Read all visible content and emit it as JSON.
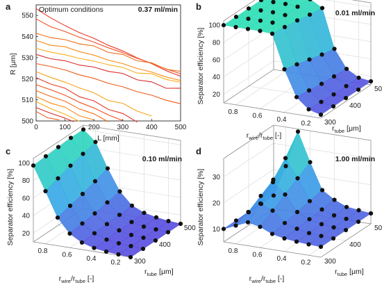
{
  "colors": {
    "accent_high": "#2ee6b0",
    "accent_low": "#5b4fe0",
    "trace_colors": [
      "#e8372a",
      "#f04e1e",
      "#f56a14",
      "#f98a12",
      "#fbae1a",
      "#d82a2a",
      "#ee5a1a",
      "#f7a21a"
    ]
  },
  "chart_data": [
    {
      "panel": "a",
      "type": "line",
      "title": "Optimum conditions",
      "flow_rate": "0.37 ml/min",
      "xlabel": "L [mm]",
      "ylabel": "R [μm]",
      "xlim": [
        0,
        500
      ],
      "ylim": [
        500,
        555
      ],
      "xticks": [
        "0",
        "100",
        "200",
        "300",
        "400",
        "500"
      ],
      "yticks": [
        "500",
        "510",
        "520",
        "530",
        "540",
        "550"
      ],
      "grid": false,
      "series": [
        {
          "x": [
            0,
            50,
            100,
            150,
            200,
            250,
            300,
            350,
            400,
            450,
            500
          ],
          "y": [
            553,
            549,
            545,
            542,
            539,
            536,
            533,
            530,
            527,
            524,
            521
          ]
        },
        {
          "x": [
            0,
            50,
            100,
            150,
            200,
            250,
            300,
            350,
            400,
            450,
            500
          ],
          "y": [
            548,
            545,
            542,
            540,
            537,
            535,
            532,
            530,
            527,
            525,
            522
          ]
        },
        {
          "x": [
            0,
            50,
            100,
            150,
            200,
            250,
            300,
            350,
            400,
            450,
            500
          ],
          "y": [
            541,
            540,
            538,
            537,
            535,
            533,
            531,
            529,
            527,
            525,
            523
          ]
        },
        {
          "x": [
            0,
            50,
            100,
            150,
            200,
            250,
            300,
            350,
            400,
            450,
            500
          ],
          "y": [
            538,
            536,
            535,
            533,
            531,
            529,
            527,
            525,
            523,
            521,
            519
          ]
        },
        {
          "x": [
            0,
            50,
            100,
            150,
            200,
            250,
            300,
            350,
            400,
            450,
            500
          ],
          "y": [
            534,
            533,
            531,
            530,
            528,
            527,
            525,
            523,
            522,
            520,
            518
          ]
        },
        {
          "x": [
            0,
            50,
            100,
            150,
            200,
            250,
            300,
            350,
            400,
            450,
            500
          ],
          "y": [
            531,
            530,
            528,
            527,
            525,
            524,
            522,
            520,
            518,
            516,
            515
          ]
        },
        {
          "x": [
            0,
            50,
            100,
            150,
            200,
            250,
            300,
            350,
            400,
            450,
            500
          ],
          "y": [
            527,
            526,
            524,
            522,
            520,
            518,
            516,
            514,
            512,
            510,
            508
          ]
        },
        {
          "x": [
            0,
            50,
            100,
            150,
            200,
            250,
            300,
            350,
            400
          ],
          "y": [
            523,
            521,
            518,
            516,
            513,
            510,
            508,
            505,
            502
          ]
        },
        {
          "x": [
            0,
            50,
            100,
            150,
            200,
            250,
            300,
            350
          ],
          "y": [
            520,
            518,
            515,
            512,
            509,
            506,
            503,
            500
          ]
        },
        {
          "x": [
            0,
            50,
            100,
            150,
            200,
            250,
            300
          ],
          "y": [
            517,
            515,
            512,
            509,
            506,
            503,
            500
          ]
        },
        {
          "x": [
            0,
            50,
            100,
            150,
            200,
            250
          ],
          "y": [
            514,
            512,
            509,
            506,
            503,
            500
          ]
        },
        {
          "x": [
            0,
            50,
            100,
            150,
            200
          ],
          "y": [
            511,
            509,
            506,
            503,
            500
          ]
        },
        {
          "x": [
            0,
            50,
            100,
            150
          ],
          "y": [
            509,
            506,
            503,
            500
          ]
        },
        {
          "x": [
            0,
            50,
            100,
            130
          ],
          "y": [
            506,
            504,
            501,
            500
          ]
        },
        {
          "x": [
            0,
            40,
            80
          ],
          "y": [
            504,
            502,
            500
          ]
        }
      ]
    },
    {
      "panel": "b",
      "type": "surface3d",
      "flow_rate": "0.01 ml/min",
      "zlabel": "Separator efficiency [%]",
      "xlabel_main": "r",
      "xlabel_sub1": "wire",
      "xlabel_mid": "/r",
      "xlabel_sub2": "tube",
      "xlabel_tail": " [-]",
      "ylabel_main": "r",
      "ylabel_sub": "tube",
      "ylabel_tail": " [μm]",
      "zlim": [
        10,
        105
      ],
      "zticks": [
        "20",
        "40",
        "60",
        "80",
        "100"
      ],
      "xticks": [
        "0.8",
        "0.6",
        "0.4",
        "0.2"
      ],
      "yticks": [
        "300",
        "400",
        "500"
      ],
      "ratio_values": [
        0.9,
        0.8,
        0.7,
        0.6,
        0.5,
        0.4,
        0.3,
        0.2,
        0.1
      ],
      "rtube_values": [
        300,
        350,
        400,
        450,
        500
      ],
      "efficiency": [
        [
          100,
          100,
          100,
          100,
          99,
          60,
          30,
          18,
          14
        ],
        [
          100,
          100,
          100,
          100,
          97,
          56,
          28,
          17,
          14
        ],
        [
          100,
          100,
          100,
          99,
          95,
          52,
          26,
          16,
          14
        ],
        [
          100,
          100,
          100,
          99,
          92,
          48,
          25,
          16,
          14
        ],
        [
          100,
          100,
          99,
          98,
          90,
          45,
          24,
          16,
          14
        ]
      ]
    },
    {
      "panel": "c",
      "type": "surface3d",
      "flow_rate": "0.10 ml/min",
      "zlabel": "Separator efficiency [%]",
      "xlabel_main": "r",
      "xlabel_sub1": "wire",
      "xlabel_mid": "/r",
      "xlabel_sub2": "tube",
      "xlabel_tail": " [-]",
      "ylabel_main": "r",
      "ylabel_sub": "tube",
      "ylabel_tail": " [μm]",
      "zlim": [
        10,
        105
      ],
      "zticks": [
        "20",
        "40",
        "60",
        "80",
        "100"
      ],
      "xticks": [
        "0.8",
        "0.6",
        "0.4",
        "0.2"
      ],
      "yticks": [
        "300",
        "400",
        "500"
      ],
      "ratio_values": [
        0.9,
        0.8,
        0.7,
        0.6,
        0.5,
        0.4,
        0.3,
        0.2,
        0.1
      ],
      "rtube_values": [
        300,
        350,
        400,
        450,
        500
      ],
      "efficiency": [
        [
          97,
          70,
          42,
          26,
          18,
          14,
          12,
          11,
          10
        ],
        [
          98,
          75,
          46,
          28,
          19,
          14,
          12,
          11,
          10
        ],
        [
          99,
          80,
          50,
          30,
          20,
          15,
          12,
          11,
          10
        ],
        [
          100,
          84,
          55,
          33,
          21,
          15,
          12,
          11,
          10
        ],
        [
          100,
          88,
          60,
          36,
          22,
          16,
          13,
          11,
          10
        ]
      ]
    },
    {
      "panel": "d",
      "type": "surface3d",
      "flow_rate": "1.00 ml/min",
      "zlabel": "Separator efficiency [%]",
      "xlabel_main": "r",
      "xlabel_sub1": "wire",
      "xlabel_mid": "/r",
      "xlabel_sub2": "tube",
      "xlabel_tail": " [-]",
      "ylabel_main": "r",
      "ylabel_sub": "tube",
      "ylabel_tail": " [μm]",
      "zlim": [
        5,
        37
      ],
      "zticks": [
        "10",
        "20",
        "30"
      ],
      "xticks": [
        "0.8",
        "0.6",
        "0.4",
        "0.2"
      ],
      "yticks": [
        "300",
        "400",
        "500"
      ],
      "ratio_values": [
        0.9,
        0.8,
        0.7,
        0.6,
        0.5,
        0.4,
        0.3,
        0.2,
        0.1
      ],
      "rtube_values": [
        300,
        350,
        400,
        450,
        500
      ],
      "efficiency": [
        [
          10,
          12,
          14,
          13,
          11,
          10,
          9.5,
          9.2,
          9
        ],
        [
          10,
          14,
          18,
          16,
          12,
          10.5,
          9.6,
          9.2,
          9
        ],
        [
          10,
          17,
          23,
          19,
          13,
          11,
          9.8,
          9.3,
          9
        ],
        [
          10,
          20,
          29,
          22,
          14,
          11.5,
          10,
          9.4,
          9
        ],
        [
          10,
          22,
          36,
          25,
          15,
          12,
          10,
          9.5,
          9
        ]
      ]
    }
  ]
}
